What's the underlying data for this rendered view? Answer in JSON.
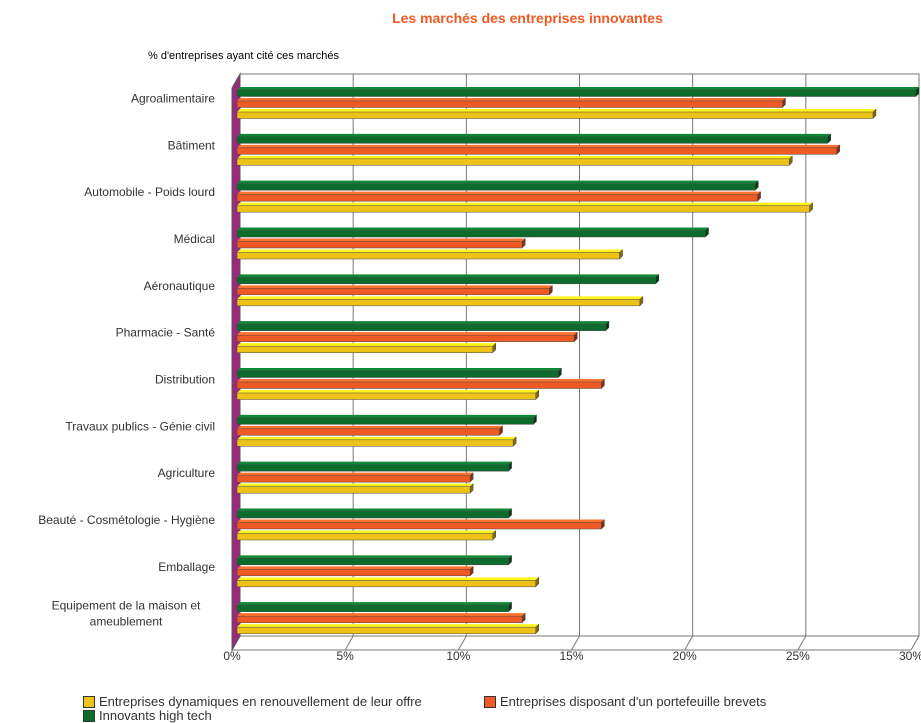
{
  "chart_data": {
    "type": "bar",
    "orientation": "horizontal",
    "title": "Les marchés des entreprises innovantes",
    "ylabel": "% d'entreprises ayant cité ces marchés",
    "categories": [
      "Agroalimentaire",
      "Bâtiment",
      "Automobile - Poids lourd",
      "Médical",
      "Aéronautique",
      "Pharmacie - Santé",
      "Distribution",
      "Travaux publics - Génie civil",
      "Agriculture",
      "Beauté - Cosmétologie - Hygiène",
      "Emballage",
      "Equipement de la maison et ameublement"
    ],
    "category_lines": [
      [
        "Agroalimentaire"
      ],
      [
        "Bâtiment"
      ],
      [
        "Automobile - Poids lourd"
      ],
      [
        "Médical"
      ],
      [
        "Aéronautique"
      ],
      [
        "Pharmacie - Santé"
      ],
      [
        "Distribution"
      ],
      [
        "Travaux publics - Génie civil"
      ],
      [
        "Agriculture"
      ],
      [
        "Beauté - Cosmétologie - Hygiène"
      ],
      [
        "Emballage"
      ],
      [
        "Equipement de la maison et",
        "ameublement"
      ]
    ],
    "series": [
      {
        "name": "Innovants high tech",
        "color": "#0d6b2c",
        "values": [
          30.0,
          26.1,
          22.9,
          20.7,
          18.5,
          16.3,
          14.2,
          13.1,
          12.0,
          12.0,
          12.0,
          12.0
        ]
      },
      {
        "name": "Entreprises disposant d'un portefeuille brevets",
        "color": "#ef5a24",
        "values": [
          24.1,
          26.5,
          23.0,
          12.6,
          13.8,
          14.9,
          16.1,
          11.6,
          10.3,
          16.1,
          10.3,
          12.6
        ]
      },
      {
        "name": "Entreprises dynamiques en renouvellement de leur offre",
        "color": "#eec218",
        "values": [
          28.1,
          24.4,
          25.3,
          16.9,
          17.8,
          11.3,
          13.2,
          12.2,
          10.3,
          11.3,
          13.2,
          13.2
        ]
      }
    ],
    "xlim": [
      0,
      30
    ],
    "x_ticks": [
      "0%",
      "5%",
      "10%",
      "15%",
      "20%",
      "25%",
      "30%"
    ],
    "grid": true,
    "wall_color": "#9b2a7c"
  },
  "legend": [
    {
      "label": "Entreprises dynamiques en renouvellement de leur offre",
      "color": "#eec218"
    },
    {
      "label": "Entreprises disposant d'un portefeuille brevets",
      "color": "#ef5a24"
    },
    {
      "label": "Innovants high tech",
      "color": "#0d6b2c"
    }
  ]
}
